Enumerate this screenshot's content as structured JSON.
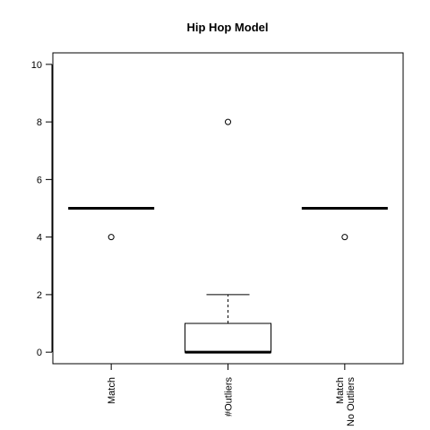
{
  "chart_data": {
    "type": "boxplot",
    "title": "Hip Hop Model",
    "xlabel": "",
    "ylabel": "",
    "ylim": [
      -0.4,
      10.4
    ],
    "yticks": [
      0,
      2,
      4,
      6,
      8,
      10
    ],
    "grid": false,
    "categories": [
      {
        "lines": [
          "Match"
        ]
      },
      {
        "lines": [
          "#Outliers"
        ]
      },
      {
        "lines": [
          "Match",
          "No Outliers"
        ]
      }
    ],
    "boxes": [
      {
        "min": 5,
        "q1": 5,
        "median": 5,
        "q3": 5,
        "max": 5,
        "outliers": [
          4
        ]
      },
      {
        "min": 0,
        "q1": 0,
        "median": 0,
        "q3": 1,
        "max": 2,
        "outliers": [
          8
        ]
      },
      {
        "min": 5,
        "q1": 5,
        "median": 5,
        "q3": 5,
        "max": 5,
        "outliers": [
          4
        ]
      }
    ]
  }
}
